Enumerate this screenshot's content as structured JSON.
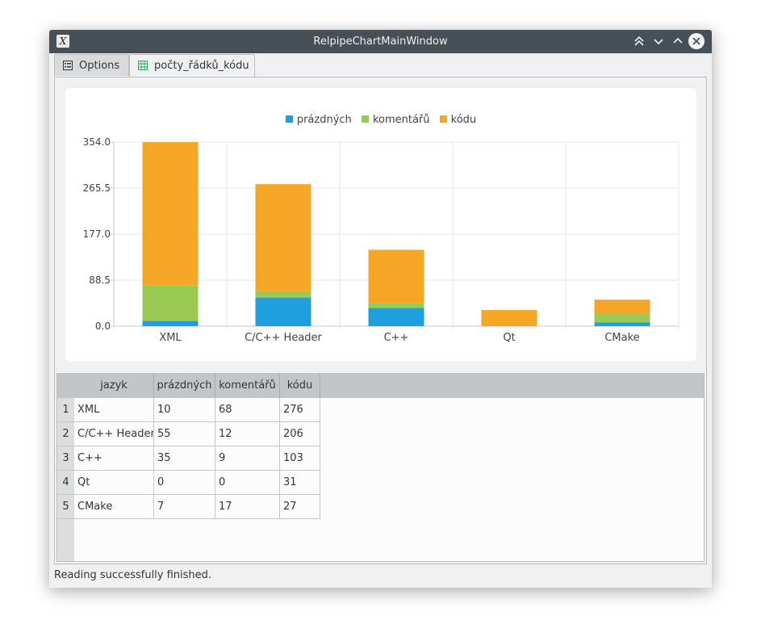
{
  "window": {
    "title": "RelpipeChartMainWindow",
    "buttons": [
      "keep-above",
      "minimize",
      "maximize",
      "close"
    ]
  },
  "tabs": [
    {
      "label": "Options",
      "icon": "list-icon",
      "active": false
    },
    {
      "label": "počty_řádků_kódu",
      "icon": "table-icon",
      "active": true
    }
  ],
  "chart_data": {
    "type": "bar",
    "stacked": true,
    "categories": [
      "XML",
      "C/C++ Header",
      "C++",
      "Qt",
      "CMake"
    ],
    "series": [
      {
        "name": "prázdných",
        "color": "#209fdf",
        "values": [
          10,
          55,
          35,
          0,
          7
        ]
      },
      {
        "name": "komentářů",
        "color": "#99ca53",
        "values": [
          68,
          12,
          9,
          0,
          17
        ]
      },
      {
        "name": "kódu",
        "color": "#f6a625",
        "values": [
          276,
          206,
          103,
          31,
          27
        ]
      }
    ],
    "ylim": [
      0,
      354
    ],
    "yticks": [
      "354.0",
      "265.5",
      "177.0",
      "88.5",
      "0.0"
    ],
    "grid": true,
    "legend": "top-center"
  },
  "table": {
    "columns": [
      "jazyk",
      "prázdných",
      "komentářů",
      "kódu"
    ],
    "row_headers": [
      "1",
      "2",
      "3",
      "4",
      "5"
    ],
    "rows": [
      [
        "XML",
        "10",
        "68",
        "276"
      ],
      [
        "C/C++ Header",
        "55",
        "12",
        "206"
      ],
      [
        "C++",
        "35",
        "9",
        "103"
      ],
      [
        "Qt",
        "0",
        "0",
        "31"
      ],
      [
        "CMake",
        "7",
        "17",
        "27"
      ]
    ]
  },
  "status": "Reading successfully finished."
}
